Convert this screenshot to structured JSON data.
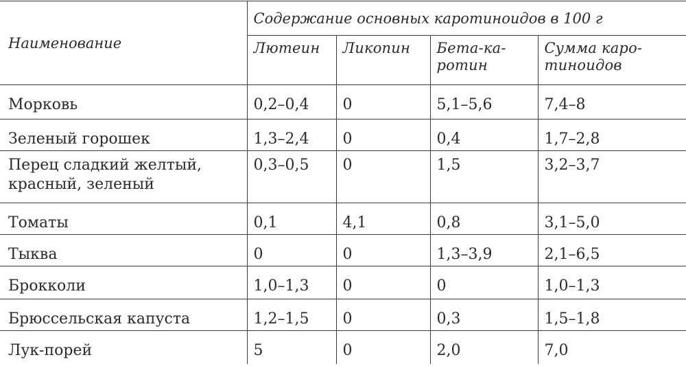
{
  "header": {
    "name_label": "Наименование",
    "group_label": "Содержание основных каротиноидов в 100 г",
    "columns": [
      {
        "line1": "Лютеин",
        "line2": ""
      },
      {
        "line1": "Ликопин",
        "line2": ""
      },
      {
        "line1": "Бета-ка-",
        "line2": "ротин"
      },
      {
        "line1": "Сумма каро-",
        "line2": "тиноидов"
      }
    ]
  },
  "rows": [
    {
      "name_line1": "Морковь",
      "name_line2": "",
      "lutein": "0,2–0,4",
      "lycopene": "0",
      "beta_carotene": "5,1–5,6",
      "total": "7,4–8"
    },
    {
      "name_line1": "Зеленый горошек",
      "name_line2": "",
      "lutein": "1,3–2,4",
      "lycopene": "0",
      "beta_carotene": "0,4",
      "total": "1,7–2,8"
    },
    {
      "name_line1": "Перец сладкий желтый,",
      "name_line2": "красный, зеленый",
      "lutein": "0,3–0,5",
      "lycopene": "0",
      "beta_carotene": "1,5",
      "total": "3,2–3,7"
    },
    {
      "name_line1": "Томаты",
      "name_line2": "",
      "lutein": "0,1",
      "lycopene": "4,1",
      "beta_carotene": "0,8",
      "total": "3,1–5,0"
    },
    {
      "name_line1": "Тыква",
      "name_line2": "",
      "lutein": "0",
      "lycopene": "0",
      "beta_carotene": "1,3–3,9",
      "total": "2,1–6,5"
    },
    {
      "name_line1": "Брокколи",
      "name_line2": "",
      "lutein": "1,0–1,3",
      "lycopene": "0",
      "beta_carotene": "0",
      "total": "1,0–1,3"
    },
    {
      "name_line1": "Брюссельская капуста",
      "name_line2": "",
      "lutein": "1,2–1,5",
      "lycopene": "0",
      "beta_carotene": "0,3",
      "total": "1,5–1,8"
    },
    {
      "name_line1": "Лук-порей",
      "name_line2": "",
      "lutein": "5",
      "lycopene": "0",
      "beta_carotene": "2,0",
      "total": "7,0"
    }
  ]
}
